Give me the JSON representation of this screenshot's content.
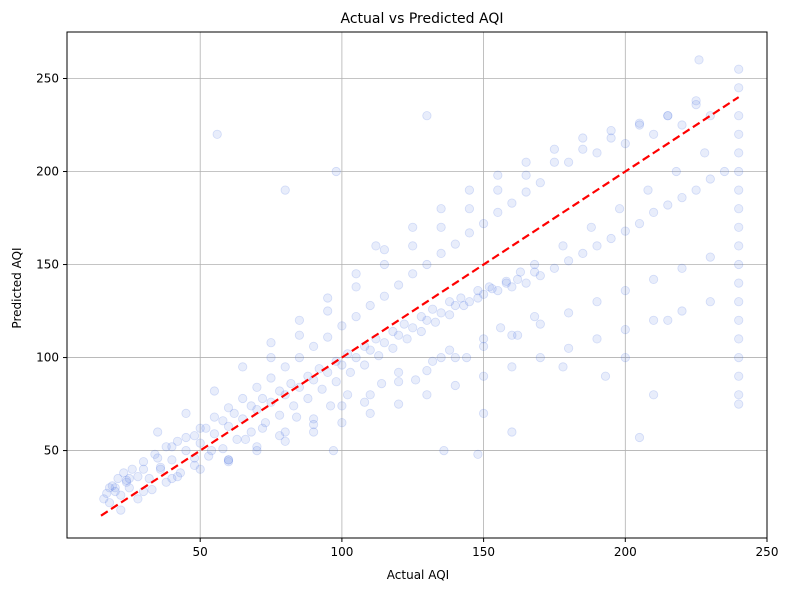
{
  "chart_data": {
    "type": "scatter",
    "title": "Actual vs Predicted AQI",
    "xlabel": "Actual AQI",
    "ylabel": "Predicted AQI",
    "xlim": [
      3,
      250
    ],
    "ylim": [
      3,
      275
    ],
    "xticks": [
      50,
      100,
      150,
      200,
      250
    ],
    "yticks": [
      50,
      100,
      150,
      200,
      250
    ],
    "grid": true,
    "legend": "none",
    "point_color": "#4169e1",
    "point_alpha": 0.12,
    "reference_line": {
      "style": "dashed",
      "color": "#ff0000",
      "x": [
        15,
        240
      ],
      "y": [
        15,
        240
      ]
    },
    "series": [
      {
        "x": [
          16,
          17,
          18,
          19,
          20,
          21,
          22,
          23,
          24,
          25,
          26,
          28,
          30,
          32,
          34,
          36,
          38,
          40,
          42,
          45,
          48,
          50,
          52,
          55,
          58,
          60,
          62,
          65,
          68,
          70,
          72,
          75,
          78,
          80,
          82,
          85,
          88,
          90,
          92,
          95,
          98,
          100,
          102,
          105,
          108,
          110,
          112,
          115,
          118,
          120,
          122,
          125,
          128,
          130,
          132,
          135,
          138,
          140,
          142,
          145,
          148,
          150,
          152,
          155,
          158,
          160,
          162,
          165,
          168,
          170,
          175,
          180,
          185,
          190,
          195,
          200,
          205,
          210,
          215,
          220,
          225,
          230,
          235,
          240,
          240,
          240,
          240,
          240,
          240,
          240,
          240,
          240,
          240,
          240,
          240,
          240,
          240,
          240,
          240,
          240,
          240,
          240,
          20,
          25,
          30,
          35,
          40,
          45,
          50,
          55,
          60,
          65,
          70,
          75,
          80,
          85,
          90,
          95,
          100,
          105,
          110,
          115,
          120,
          125,
          130,
          135,
          140,
          145,
          150,
          155,
          160,
          165,
          170,
          180,
          190,
          200,
          210,
          220,
          230,
          22,
          28,
          33,
          38,
          43,
          48,
          53,
          58,
          63,
          68,
          73,
          78,
          83,
          88,
          93,
          98,
          103,
          108,
          113,
          118,
          123,
          128,
          133,
          138,
          143,
          148,
          153,
          158,
          163,
          168,
          178,
          188,
          198,
          208,
          218,
          228,
          35,
          45,
          55,
          65,
          75,
          85,
          95,
          105,
          115,
          125,
          135,
          145,
          155,
          165,
          175,
          185,
          195,
          205,
          215,
          225,
          60,
          70,
          80,
          90,
          100,
          110,
          120,
          130,
          140,
          150,
          160,
          170,
          180,
          190,
          200,
          210,
          220,
          230,
          40,
          50,
          60,
          70,
          80,
          90,
          100,
          110,
          120,
          130,
          140,
          150,
          160,
          170,
          180,
          190,
          200,
          210,
          220,
          230,
          75,
          85,
          95,
          105,
          115,
          125,
          135,
          145,
          155,
          165,
          175,
          185,
          195,
          205,
          215,
          225,
          18,
          24,
          30,
          36,
          42,
          48,
          54,
          60,
          66,
          72,
          78,
          84,
          90,
          96,
          102,
          108,
          114,
          120,
          126,
          132,
          138,
          144,
          150,
          156,
          162,
          168,
          56,
          80,
          130,
          150,
          200,
          205,
          210,
          215,
          226,
          178,
          160,
          135,
          112,
          97,
          136,
          148,
          193,
          98
        ],
        "y": [
          24,
          27,
          22,
          31,
          28,
          35,
          26,
          38,
          33,
          30,
          40,
          36,
          44,
          35,
          48,
          41,
          52,
          45,
          55,
          50,
          58,
          54,
          62,
          59,
          66,
          63,
          70,
          67,
          74,
          72,
          78,
          76,
          82,
          80,
          86,
          84,
          90,
          88,
          94,
          92,
          98,
          96,
          102,
          100,
          106,
          104,
          110,
          108,
          114,
          112,
          118,
          116,
          122,
          120,
          126,
          124,
          130,
          128,
          132,
          130,
          136,
          134,
          138,
          136,
          140,
          138,
          142,
          140,
          146,
          144,
          148,
          152,
          156,
          160,
          164,
          168,
          172,
          178,
          182,
          186,
          190,
          196,
          200,
          80,
          90,
          100,
          110,
          120,
          130,
          140,
          150,
          160,
          170,
          180,
          190,
          200,
          210,
          220,
          230,
          245,
          255,
          75,
          30,
          35,
          40,
          46,
          52,
          57,
          62,
          68,
          73,
          78,
          84,
          89,
          95,
          100,
          106,
          111,
          117,
          122,
          128,
          133,
          139,
          145,
          150,
          156,
          161,
          167,
          172,
          178,
          183,
          189,
          194,
          205,
          210,
          215,
          220,
          225,
          230,
          18,
          24,
          29,
          33,
          38,
          42,
          47,
          51,
          56,
          60,
          65,
          69,
          74,
          78,
          83,
          87,
          92,
          96,
          101,
          105,
          110,
          114,
          119,
          123,
          128,
          132,
          137,
          141,
          146,
          150,
          160,
          170,
          180,
          190,
          200,
          210,
          60,
          70,
          82,
          95,
          108,
          120,
          132,
          145,
          158,
          170,
          180,
          190,
          198,
          205,
          212,
          218,
          222,
          226,
          230,
          236,
          45,
          52,
          60,
          67,
          74,
          80,
          87,
          93,
          100,
          106,
          112,
          118,
          124,
          130,
          136,
          142,
          148,
          154,
          35,
          40,
          45,
          50,
          55,
          60,
          65,
          70,
          75,
          80,
          85,
          90,
          95,
          100,
          105,
          110,
          115,
          120,
          125,
          130,
          100,
          112,
          125,
          138,
          150,
          160,
          170,
          180,
          190,
          198,
          205,
          212,
          218,
          225,
          230,
          238,
          30,
          34,
          28,
          40,
          36,
          46,
          50,
          44,
          56,
          62,
          58,
          68,
          64,
          74,
          80,
          76,
          86,
          92,
          88,
          98,
          104,
          100,
          110,
          116,
          112,
          122,
          220,
          190,
          230,
          70,
          100,
          57,
          80,
          120,
          260,
          95,
          60,
          100,
          160,
          50,
          50,
          48,
          90,
          200
        ]
      }
    ]
  }
}
